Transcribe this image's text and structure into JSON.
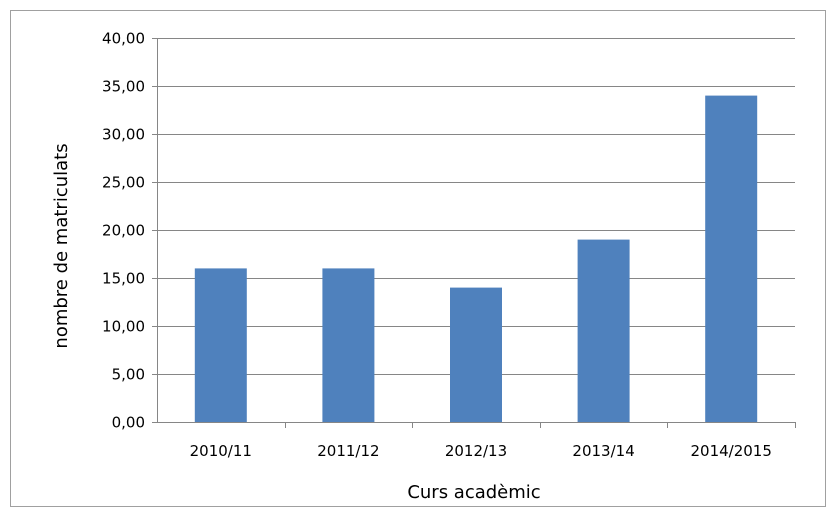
{
  "chart_data": {
    "type": "bar",
    "categories": [
      "2010/11",
      "2011/12",
      "2012/13",
      "2013/14",
      "2014/2015"
    ],
    "values": [
      16,
      16,
      14,
      19,
      34
    ],
    "xlabel": "Curs acadèmic",
    "ylabel": "nombre de matriculats",
    "ylim": [
      0,
      40
    ],
    "yticks": [
      "0,00",
      "5,00",
      "10,00",
      "15,00",
      "20,00",
      "25,00",
      "30,00",
      "35,00",
      "40,00"
    ],
    "grid": true,
    "legend": "none",
    "bar_color": "#4f81bd"
  }
}
